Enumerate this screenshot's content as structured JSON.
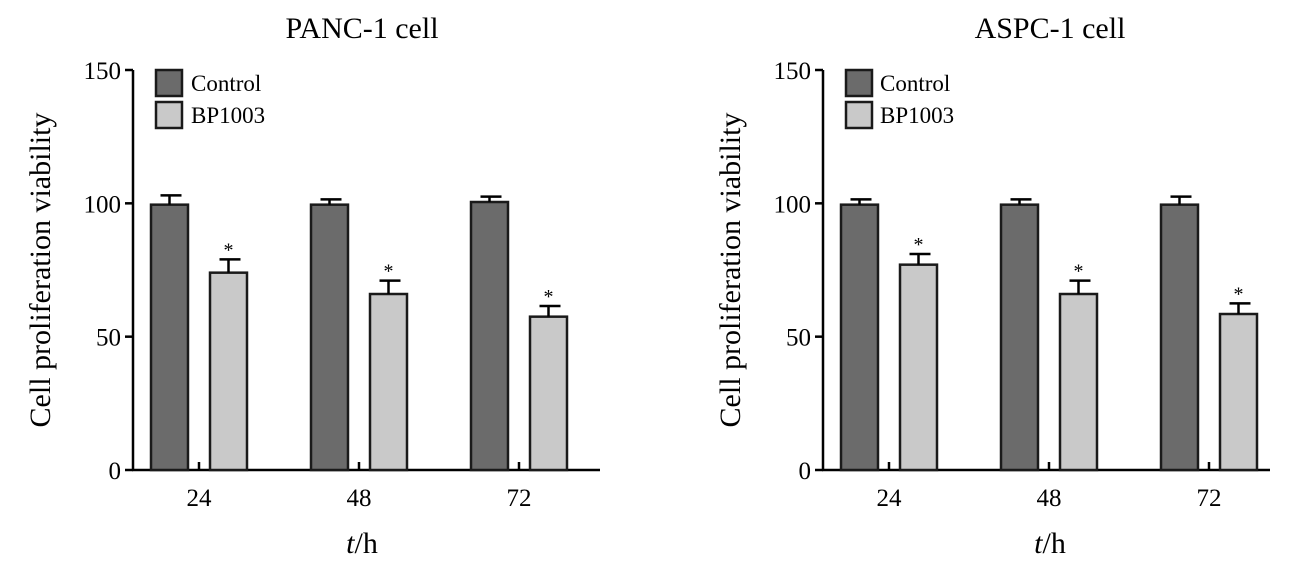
{
  "colors": {
    "control": "#6b6b6b",
    "bp1003": "#c9c9c9",
    "stroke": "#1a1a1a",
    "background": "#ffffff"
  },
  "chart_data": [
    {
      "type": "bar",
      "title": "PANC-1 cell",
      "xlabel_italic": "t",
      "xlabel_unit": "/h",
      "ylabel": "Cell proliferation viability",
      "ylim": [
        0,
        150
      ],
      "yticks": [
        "0",
        "50",
        "100",
        "150"
      ],
      "categories": [
        "24",
        "48",
        "72"
      ],
      "legend": {
        "placement": "top-left"
      },
      "series": [
        {
          "name": "Control",
          "values": [
            99.5,
            99.5,
            100.5
          ],
          "errors": [
            3.5,
            2,
            2
          ],
          "marks": [
            "",
            "",
            ""
          ]
        },
        {
          "name": "BP1003",
          "values": [
            74,
            66,
            57.5
          ],
          "errors": [
            5,
            5,
            4
          ],
          "marks": [
            "*",
            "*",
            "*"
          ]
        }
      ]
    },
    {
      "type": "bar",
      "title": "ASPC-1 cell",
      "xlabel_italic": "t",
      "xlabel_unit": "/h",
      "ylabel": "Cell proliferation viability",
      "ylim": [
        0,
        150
      ],
      "yticks": [
        "0",
        "50",
        "100",
        "150"
      ],
      "categories": [
        "24",
        "48",
        "72"
      ],
      "legend": {
        "placement": "top-left"
      },
      "series": [
        {
          "name": "Control",
          "values": [
            99.5,
            99.5,
            99.5
          ],
          "errors": [
            2,
            2,
            3
          ],
          "marks": [
            "",
            "",
            ""
          ]
        },
        {
          "name": "BP1003",
          "values": [
            77,
            66,
            58.5
          ],
          "errors": [
            4,
            5,
            4
          ],
          "marks": [
            "*",
            "*",
            "*"
          ]
        }
      ]
    }
  ]
}
